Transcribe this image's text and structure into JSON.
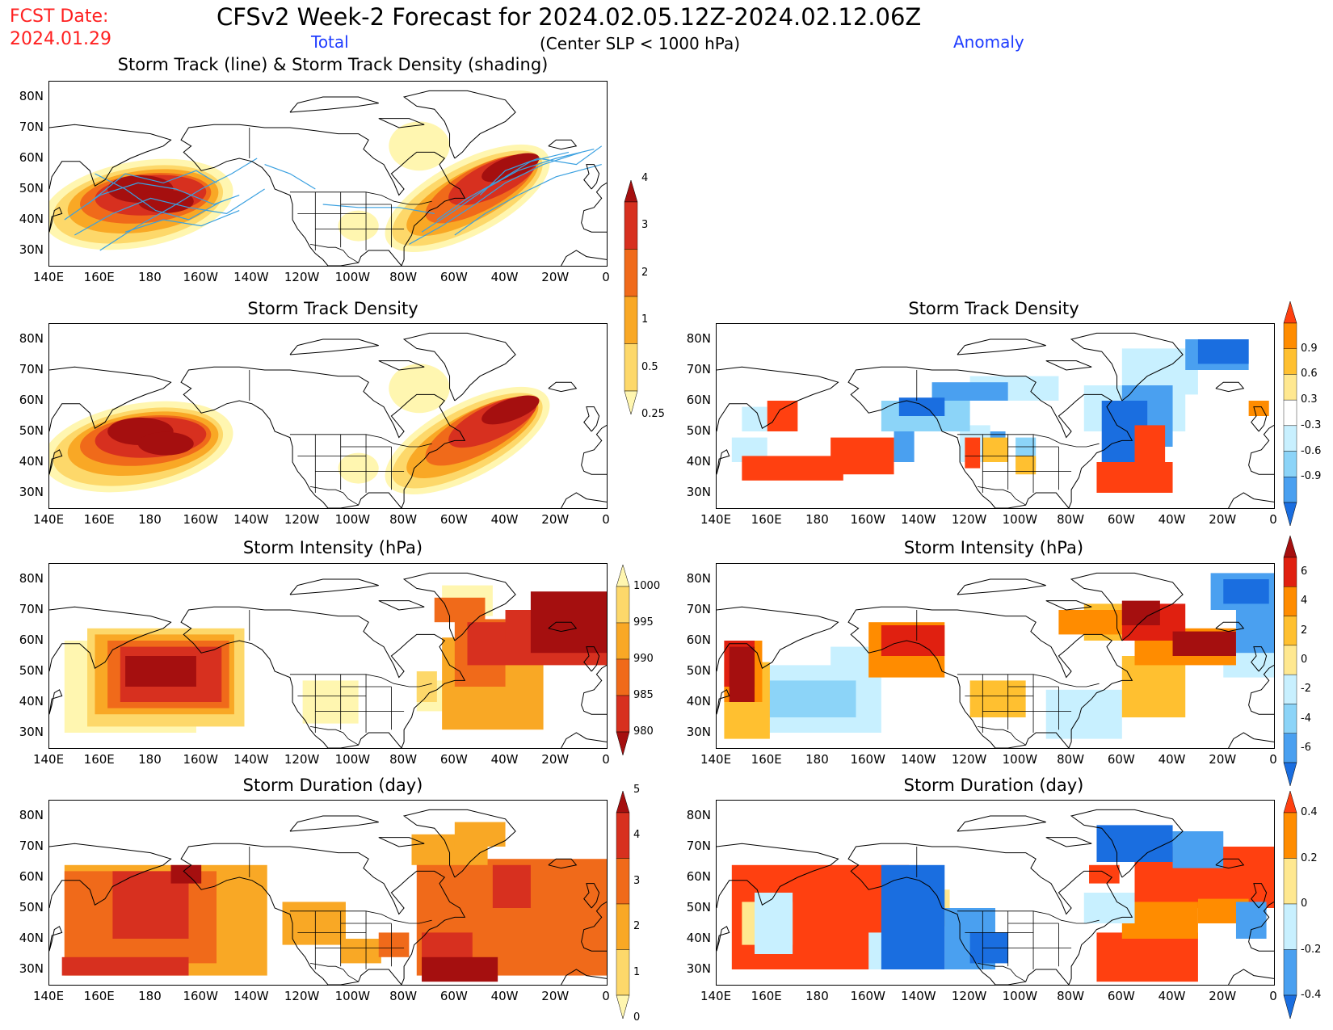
{
  "header": {
    "fcst_label": "FCST Date:",
    "fcst_date": "2024.01.29",
    "main_title": "CFSv2 Week-2 Forecast for 2024.02.05.12Z-2024.02.12.06Z",
    "total_label": "Total",
    "criterion": "(Center SLP < 1000 hPa)",
    "anomaly_label": "Anomaly"
  },
  "colors": {
    "title_red": "#ff2020",
    "label_blue": "#1e3cff",
    "track_line": "#3aa0e0",
    "land_outline": "#000000"
  },
  "axes": {
    "lat_labels": [
      "80N",
      "70N",
      "60N",
      "50N",
      "40N",
      "30N"
    ],
    "lon_labels": [
      "140E",
      "160E",
      "180",
      "160W",
      "140W",
      "120W",
      "100W",
      "80W",
      "60W",
      "40W",
      "20W",
      "0"
    ]
  },
  "panels": [
    {
      "id": "track-total",
      "title": "Storm Track (line) & Storm Track Density (shading)",
      "column": "total",
      "variable": "track",
      "scale": "seq-density"
    },
    {
      "id": "density-total",
      "title": "Storm Track Density",
      "column": "total",
      "variable": "density",
      "scale": "seq-density"
    },
    {
      "id": "density-anom",
      "title": "Storm Track Density",
      "column": "anomaly",
      "variable": "density",
      "scale": "div-density"
    },
    {
      "id": "intensity-total",
      "title": "Storm Intensity (hPa)",
      "column": "total",
      "variable": "intensity",
      "scale": "seq-intensity"
    },
    {
      "id": "intensity-anom",
      "title": "Storm Intensity (hPa)",
      "column": "anomaly",
      "variable": "intensity",
      "scale": "div-intensity"
    },
    {
      "id": "duration-total",
      "title": "Storm Duration (day)",
      "column": "total",
      "variable": "duration",
      "scale": "seq-duration"
    },
    {
      "id": "duration-anom",
      "title": "Storm Duration (day)",
      "column": "anomaly",
      "variable": "duration",
      "scale": "div-duration"
    }
  ],
  "colorbars": {
    "seq-density": {
      "labels": [
        "4",
        "3",
        "2",
        "1",
        "0.5",
        "0.25"
      ],
      "colors": [
        "#a50f0f",
        "#d7301f",
        "#f06a1a",
        "#f9a825",
        "#fdd86a",
        "#fff6b0"
      ],
      "arrow_bottom": false
    },
    "seq-intensity": {
      "labels": [
        "1000",
        "995",
        "990",
        "985",
        "980"
      ],
      "colors": [
        "#fff6b0",
        "#fdd86a",
        "#f9a825",
        "#f06a1a",
        "#d7301f",
        "#a50f0f"
      ],
      "arrow_bottom": true
    },
    "seq-duration": {
      "labels": [
        "5",
        "4",
        "3",
        "2",
        "1",
        "0"
      ],
      "colors": [
        "#a50f0f",
        "#d7301f",
        "#f06a1a",
        "#f9a825",
        "#fdd86a",
        "#fff6b0"
      ],
      "arrow_bottom": false
    },
    "div-density": {
      "labels": [
        "0.9",
        "0.6",
        "0.3",
        "-0.3",
        "-0.6",
        "-0.9"
      ],
      "colors": [
        "#ff4010",
        "#ff8c00",
        "#ffc030",
        "#ffe890",
        "#ffffff",
        "#c8f0ff",
        "#8cd4f8",
        "#4aa0f0",
        "#1a6ee0"
      ]
    },
    "div-intensity": {
      "labels": [
        "6",
        "4",
        "2",
        "0",
        "-2",
        "-4",
        "-6"
      ],
      "colors": [
        "#a50f0f",
        "#e02010",
        "#ff8c00",
        "#ffc030",
        "#ffe890",
        "#c8f0ff",
        "#8cd4f8",
        "#4aa0f0",
        "#1a6ee0"
      ]
    },
    "div-duration": {
      "labels": [
        "0.4",
        "0.2",
        "0",
        "-0.2",
        "-0.4"
      ],
      "colors": [
        "#ff4010",
        "#ff8c00",
        "#ffe890",
        "#c8f0ff",
        "#4aa0f0",
        "#1a6ee0"
      ]
    }
  }
}
